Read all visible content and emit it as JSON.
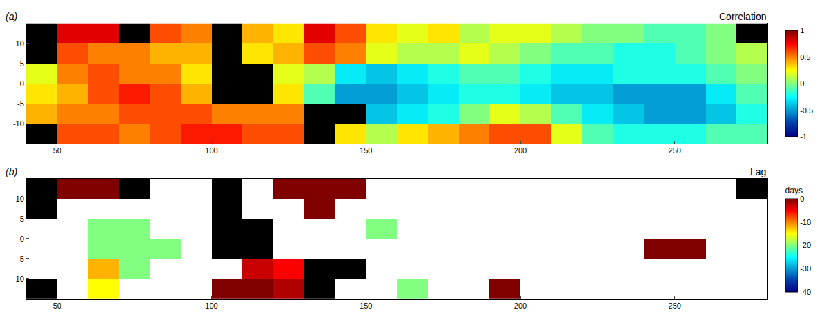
{
  "chart_data": [
    {
      "type": "heatmap",
      "label": "(a)",
      "title": "Correlation",
      "color": "Jet",
      "x": [
        45,
        55,
        65,
        75,
        85,
        95,
        105,
        115,
        125,
        135,
        145,
        155,
        165,
        175,
        185,
        195,
        205,
        215,
        225,
        235,
        245,
        255,
        265,
        275
      ],
      "y": [
        -12.5,
        -7.5,
        -2.5,
        2.5,
        7.5,
        12.5
      ],
      "values": [
        [
          null,
          0.6,
          0.6,
          0.5,
          0.6,
          0.7,
          0.7,
          0.6,
          0.6,
          null,
          0.3,
          0.1,
          0.3,
          0.4,
          0.5,
          0.6,
          0.6,
          0.2,
          -0.1,
          -0.2,
          -0.2,
          -0.2,
          -0.1,
          -0.1
        ],
        [
          0.4,
          0.5,
          0.5,
          0.6,
          0.6,
          0.6,
          0.5,
          0.5,
          0.5,
          null,
          null,
          -0.4,
          -0.3,
          -0.2,
          0,
          0.2,
          0.1,
          -0.1,
          -0.3,
          -0.4,
          -0.5,
          -0.5,
          -0.4,
          -0.2
        ],
        [
          0.3,
          0.4,
          0.6,
          0.7,
          0.6,
          0.4,
          null,
          null,
          0.3,
          -0.1,
          -0.5,
          -0.5,
          -0.4,
          -0.3,
          -0.2,
          -0.2,
          -0.3,
          -0.4,
          -0.4,
          -0.5,
          -0.5,
          -0.5,
          -0.3,
          -0.1
        ],
        [
          0.2,
          0.5,
          0.6,
          0.5,
          0.5,
          0.3,
          null,
          null,
          0.2,
          0.1,
          -0.3,
          -0.4,
          -0.3,
          -0.2,
          -0.1,
          -0.1,
          -0.2,
          -0.3,
          -0.3,
          -0.2,
          -0.2,
          -0.2,
          -0.1,
          0
        ],
        [
          null,
          0.6,
          0.5,
          0.5,
          0.4,
          0.4,
          null,
          0.3,
          0.4,
          0.6,
          0.5,
          0.2,
          0.1,
          0.1,
          0.2,
          0.1,
          0,
          -0.1,
          -0.1,
          -0.2,
          -0.2,
          -0.1,
          0,
          0.1
        ],
        [
          null,
          0.8,
          0.8,
          null,
          0.6,
          0.5,
          null,
          0.4,
          0.3,
          0.8,
          0.6,
          0.3,
          0.2,
          0.3,
          0.1,
          0.2,
          0.2,
          0.1,
          0,
          0,
          -0.1,
          -0.1,
          0,
          null
        ]
      ],
      "land": [
        [
          1,
          null,
          null,
          null,
          null,
          null,
          null,
          null,
          null,
          1,
          null,
          null,
          null,
          null,
          null,
          null,
          null,
          null,
          null,
          null,
          null,
          null,
          null,
          null
        ],
        [
          null,
          null,
          null,
          null,
          null,
          null,
          null,
          null,
          null,
          1,
          1,
          null,
          null,
          null,
          null,
          null,
          null,
          null,
          null,
          null,
          null,
          null,
          null,
          null
        ],
        [
          null,
          null,
          null,
          null,
          null,
          null,
          1,
          1,
          null,
          null,
          null,
          null,
          null,
          null,
          null,
          null,
          null,
          null,
          null,
          null,
          null,
          null,
          null,
          null
        ],
        [
          null,
          null,
          null,
          null,
          null,
          null,
          1,
          1,
          null,
          null,
          null,
          null,
          null,
          null,
          null,
          null,
          null,
          null,
          null,
          null,
          null,
          null,
          null,
          null
        ],
        [
          1,
          null,
          null,
          null,
          null,
          null,
          1,
          null,
          null,
          null,
          null,
          null,
          null,
          null,
          null,
          null,
          null,
          null,
          null,
          null,
          null,
          null,
          null,
          null
        ],
        [
          1,
          null,
          null,
          1,
          null,
          null,
          1,
          null,
          null,
          null,
          null,
          null,
          null,
          null,
          null,
          null,
          null,
          null,
          null,
          null,
          null,
          null,
          null,
          1
        ]
      ],
      "xlim": [
        40,
        280
      ],
      "ylim": [
        -15,
        15
      ],
      "xticks": [
        50,
        100,
        150,
        200,
        250
      ],
      "yticks": [
        -10,
        -5,
        0,
        5,
        10
      ],
      "color_range": [
        -1,
        1
      ],
      "color_ticks": [
        -1,
        -0.5,
        0,
        0.5,
        1
      ]
    },
    {
      "type": "heatmap",
      "label": "(b)",
      "title": "Lag",
      "color": "Jet",
      "color_title": "days",
      "x": [
        45,
        55,
        65,
        75,
        85,
        95,
        105,
        115,
        125,
        135,
        145,
        155,
        165,
        175,
        185,
        195,
        205,
        215,
        225,
        235,
        245,
        255,
        265,
        275
      ],
      "y": [
        -12.5,
        -7.5,
        -2.5,
        2.5,
        7.5,
        12.5
      ],
      "values": [
        [
          null,
          null,
          -15,
          null,
          null,
          null,
          0,
          0,
          -2,
          null,
          null,
          null,
          -20,
          null,
          null,
          0,
          null,
          null,
          null,
          null,
          null,
          null,
          null,
          null
        ],
        [
          null,
          null,
          -12,
          -20,
          null,
          null,
          null,
          -3,
          -5,
          null,
          null,
          null,
          null,
          null,
          null,
          null,
          null,
          null,
          null,
          null,
          null,
          null,
          null,
          null
        ],
        [
          null,
          null,
          -20,
          -20,
          -20,
          null,
          null,
          null,
          null,
          null,
          null,
          null,
          null,
          null,
          null,
          null,
          null,
          null,
          null,
          null,
          0,
          0,
          null,
          null
        ],
        [
          null,
          null,
          -20,
          -20,
          null,
          null,
          null,
          null,
          null,
          null,
          null,
          -20,
          null,
          null,
          null,
          null,
          null,
          null,
          null,
          null,
          null,
          null,
          null,
          null
        ],
        [
          null,
          null,
          null,
          null,
          null,
          null,
          null,
          null,
          null,
          0,
          null,
          null,
          null,
          null,
          null,
          null,
          null,
          null,
          null,
          null,
          null,
          null,
          null,
          null
        ],
        [
          null,
          0,
          0,
          null,
          null,
          null,
          null,
          null,
          0,
          0,
          0,
          null,
          null,
          null,
          null,
          null,
          null,
          null,
          null,
          null,
          null,
          null,
          null,
          null
        ]
      ],
      "land": [
        [
          1,
          null,
          null,
          null,
          null,
          null,
          null,
          null,
          null,
          1,
          null,
          null,
          null,
          null,
          null,
          null,
          null,
          null,
          null,
          null,
          null,
          null,
          null,
          null
        ],
        [
          null,
          null,
          null,
          null,
          null,
          null,
          null,
          null,
          null,
          1,
          1,
          null,
          null,
          null,
          null,
          null,
          null,
          null,
          null,
          null,
          null,
          null,
          null,
          null
        ],
        [
          null,
          null,
          null,
          null,
          null,
          null,
          1,
          1,
          null,
          null,
          null,
          null,
          null,
          null,
          null,
          null,
          null,
          null,
          null,
          null,
          null,
          null,
          null,
          null
        ],
        [
          null,
          null,
          null,
          null,
          null,
          null,
          1,
          1,
          null,
          null,
          null,
          null,
          null,
          null,
          null,
          null,
          null,
          null,
          null,
          null,
          null,
          null,
          null,
          null
        ],
        [
          1,
          null,
          null,
          null,
          null,
          null,
          1,
          null,
          null,
          null,
          null,
          null,
          null,
          null,
          null,
          null,
          null,
          null,
          null,
          null,
          null,
          null,
          null,
          null
        ],
        [
          1,
          null,
          null,
          1,
          null,
          null,
          1,
          null,
          null,
          null,
          null,
          null,
          null,
          null,
          null,
          null,
          null,
          null,
          null,
          null,
          null,
          null,
          null,
          1
        ]
      ],
      "xlim": [
        40,
        280
      ],
      "ylim": [
        -15,
        15
      ],
      "xticks": [
        50,
        100,
        150,
        200,
        250
      ],
      "yticks": [
        -10,
        -5,
        0,
        5,
        10
      ],
      "color_range": [
        -40,
        0
      ],
      "color_ticks": [
        0,
        -10,
        -20,
        -30,
        -40
      ]
    }
  ]
}
